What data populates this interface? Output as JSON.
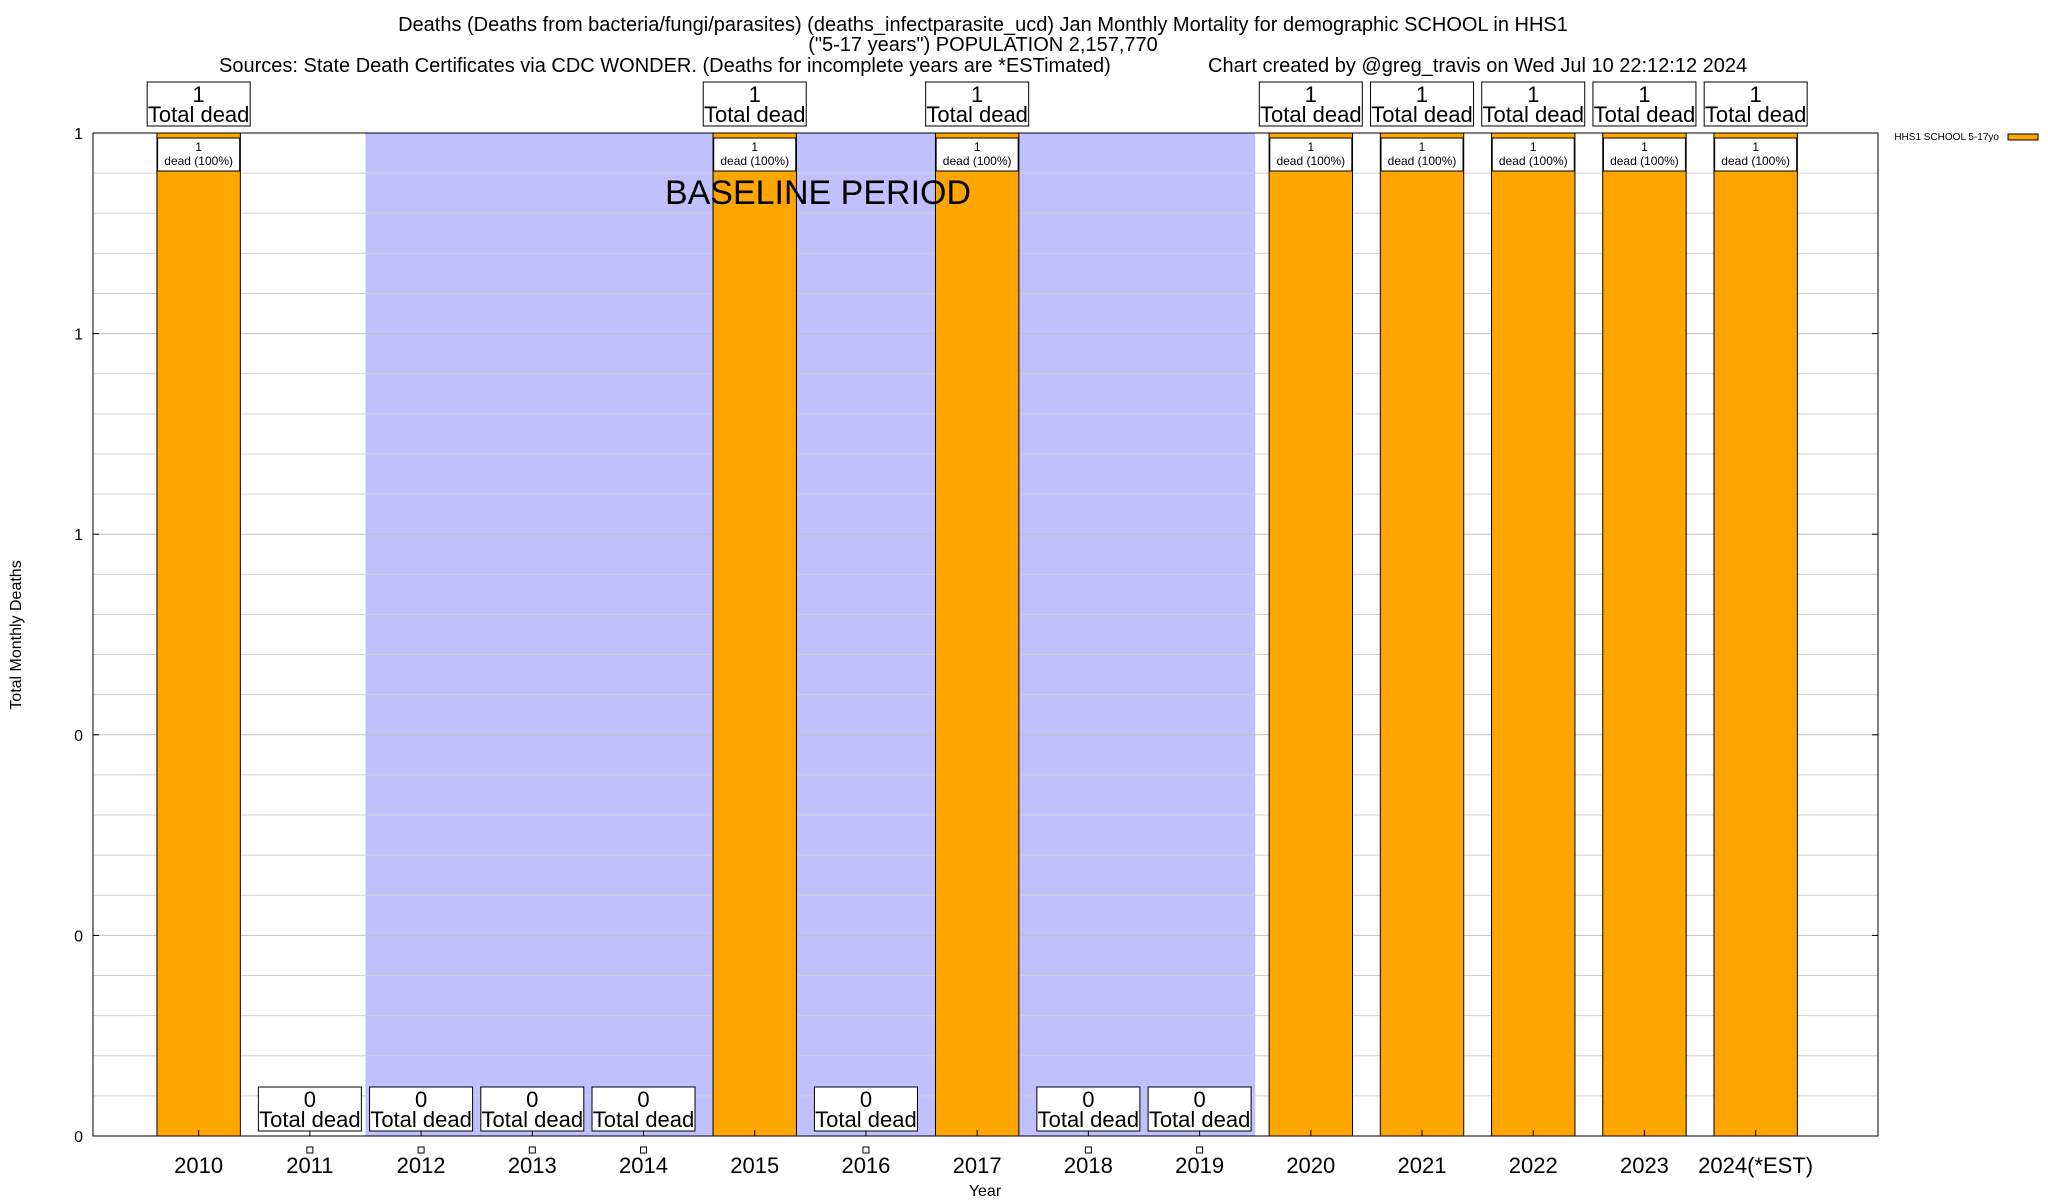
{
  "chart_data": {
    "type": "bar",
    "title": [
      "Deaths (Deaths from bacteria/fungi/parasites) (deaths_infectparasite_ucd) Jan Monthly Mortality for demographic SCHOOL in HHS1",
      "(\"5-17 years\") POPULATION 2,157,770",
      "Sources: State Death Certificates via CDC WONDER. (Deaths for incomplete years are *ESTimated)",
      "Chart created by @greg_travis on Wed Jul 10 22:12:12 2024"
    ],
    "xlabel": "Year",
    "ylabel": "Total Monthly Deaths",
    "categories": [
      "2010",
      "2011",
      "2012",
      "2013",
      "2014",
      "2015",
      "2016",
      "2017",
      "2018",
      "2019",
      "2020",
      "2021",
      "2022",
      "2023",
      "2024(*EST)"
    ],
    "series": [
      {
        "name": "HHS1 SCHOOL 5-17yo",
        "color": "#ffa500",
        "values": [
          1,
          0,
          0,
          0,
          0,
          1,
          0,
          1,
          0,
          0,
          1,
          1,
          1,
          1,
          1
        ]
      }
    ],
    "total_labels": [
      "1",
      "0",
      "0",
      "0",
      "0",
      "1",
      "0",
      "1",
      "0",
      "0",
      "1",
      "1",
      "1",
      "1",
      "1"
    ],
    "total_suffix": "Total dead",
    "bar_labels": [
      "1",
      "",
      "",
      "",
      "",
      "1",
      "",
      "1",
      "",
      "",
      "1",
      "1",
      "1",
      "1",
      "1"
    ],
    "bar_label_suffix": "dead (100%)",
    "ylim": [
      0,
      1
    ],
    "ytick_values": [
      0,
      0.2,
      0.4,
      0.6,
      0.8,
      1
    ],
    "ytick_labels": [
      "0",
      "0",
      "0",
      "1",
      "1",
      "1"
    ],
    "minor_grid_per_major": 5,
    "grid": true,
    "legend_position": "top-right",
    "baseline_period": {
      "label": "BASELINE PERIOD",
      "start": "2012",
      "end": "2019",
      "gap_years": [
        "2015",
        "2017"
      ],
      "color": "#c0c0ff"
    }
  }
}
